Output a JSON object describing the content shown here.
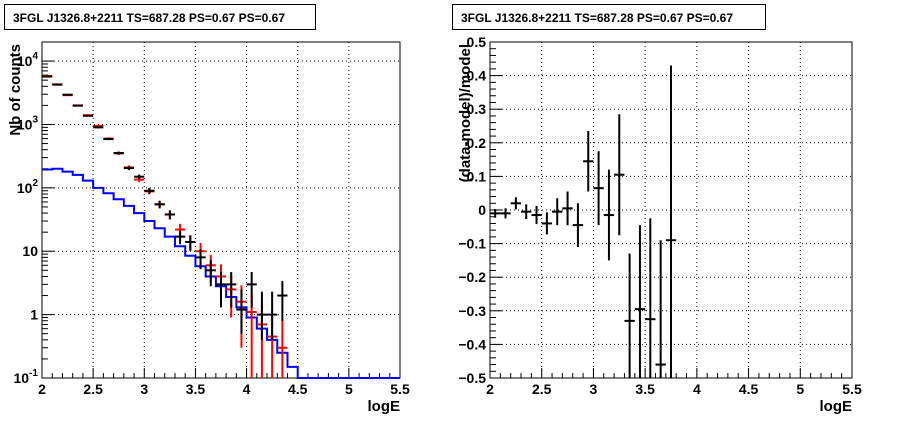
{
  "chart_data": [
    {
      "type": "step",
      "title": "3FGL J1326.8+2211 TS=687.28 PS=0.67 PS=0.67",
      "xlabel": "logE",
      "ylabel": "Nb of counts",
      "xlim": [
        2,
        5.5
      ],
      "ylim": [
        0.1,
        20000
      ],
      "yscale": "log",
      "grid": true,
      "x_ticks": [
        "2",
        "2.5",
        "3",
        "3.5",
        "4",
        "4.5",
        "5",
        "5.5"
      ],
      "y_ticks": [
        "10^-1",
        "1",
        "10",
        "10^2",
        "10^3",
        "10^4"
      ],
      "bin_edges": [
        2.0,
        2.1,
        2.2,
        2.3,
        2.4,
        2.5,
        2.6,
        2.7,
        2.8,
        2.9,
        3.0,
        3.1,
        3.2,
        3.3,
        3.4,
        3.5,
        3.6,
        3.7,
        3.8,
        3.9,
        4.0,
        4.1,
        4.2,
        4.3,
        4.4,
        4.5,
        4.6,
        4.7,
        4.8,
        4.9,
        5.0,
        5.1,
        5.2,
        5.3,
        5.4,
        5.5
      ],
      "series": [
        {
          "color": "#0000ff",
          "style": "step",
          "values": [
            195,
            200,
            180,
            160,
            130,
            100,
            82,
            66,
            52,
            40,
            30,
            23,
            17,
            12,
            8.5,
            5.8,
            4.0,
            2.8,
            1.9,
            1.3,
            0.9,
            0.6,
            0.4,
            0.25,
            0.15,
            0.1,
            0.1,
            0.1,
            0.1,
            0.1,
            0.1,
            0.1,
            0.1,
            0.1,
            0.1
          ]
        },
        {
          "color": "#ff0000",
          "style": "errorbar",
          "x": [
            2.05,
            2.15,
            2.25,
            2.35,
            2.45,
            2.55,
            2.65,
            2.75,
            2.85,
            2.95,
            3.05,
            3.15,
            3.25,
            3.35,
            3.45,
            3.55,
            3.65,
            3.75,
            3.85,
            3.95,
            4.05,
            4.15,
            4.25,
            4.35
          ],
          "y": [
            5800,
            4300,
            2900,
            2000,
            1400,
            950,
            600,
            350,
            210,
            135,
            88,
            55,
            38,
            22,
            14,
            10,
            6,
            4,
            2.5,
            1.6,
            1.1,
            0.7,
            0.45,
            0.3
          ],
          "err_low": [
            80,
            65,
            55,
            45,
            37,
            31,
            25,
            19,
            15,
            12,
            9,
            7.5,
            6,
            5,
            4,
            3.5,
            2.8,
            2.2,
            1.6,
            1.3,
            1.05,
            0.84,
            0.67,
            0.55
          ],
          "err_high": [
            80,
            65,
            55,
            45,
            37,
            31,
            25,
            19,
            15,
            12,
            9,
            7.5,
            6,
            5,
            4,
            3.5,
            2.8,
            2.2,
            1.6,
            1.3,
            1.05,
            0.84,
            0.67,
            0.55
          ]
        },
        {
          "color": "#000000",
          "style": "errorbar",
          "x": [
            2.05,
            2.15,
            2.25,
            2.35,
            2.45,
            2.55,
            2.65,
            2.75,
            2.85,
            2.95,
            3.05,
            3.15,
            3.25,
            3.35,
            3.45,
            3.55,
            3.65,
            3.75,
            3.85,
            3.95,
            4.05,
            4.15,
            4.25,
            4.35
          ],
          "y": [
            5700,
            4250,
            2950,
            1980,
            1370,
            900,
            590,
            355,
            205,
            150,
            90,
            55,
            38,
            17,
            14,
            8,
            5,
            3,
            3,
            1.2,
            3,
            1,
            1,
            2
          ],
          "err_low": [
            75,
            65,
            54,
            44,
            37,
            30,
            24,
            19,
            14,
            12,
            9.5,
            7.4,
            6.2,
            4.1,
            3.7,
            2.8,
            2.2,
            1.7,
            1.7,
            0.7,
            1.7,
            0.6,
            0.6,
            1.2
          ],
          "err_high": [
            75,
            65,
            54,
            44,
            37,
            30,
            24,
            19,
            14,
            12,
            9.5,
            7.4,
            6.2,
            4.1,
            3.7,
            2.8,
            2.2,
            1.7,
            1.7,
            1.3,
            1.7,
            1.3,
            1.3,
            1.4
          ]
        }
      ]
    },
    {
      "type": "scatter",
      "title": "3FGL J1326.8+2211 TS=687.28 PS=0.67 PS=0.67",
      "xlabel": "logE",
      "ylabel": "(data-model)/model",
      "xlim": [
        2,
        5.5
      ],
      "ylim": [
        -0.5,
        0.5
      ],
      "grid": true,
      "x_ticks": [
        "2",
        "2.5",
        "3",
        "3.5",
        "4",
        "4.5",
        "5",
        "5.5"
      ],
      "y_ticks": [
        "−0.5",
        "−0.4",
        "−0.3",
        "−0.2",
        "−0.1",
        "0",
        "0.1",
        "0.2",
        "0.3",
        "0.4",
        "0.5"
      ],
      "series": [
        {
          "color": "#000000",
          "style": "errorbar",
          "x": [
            2.05,
            2.15,
            2.25,
            2.35,
            2.45,
            2.55,
            2.65,
            2.75,
            2.85,
            2.95,
            3.05,
            3.15,
            3.25,
            3.35,
            3.45,
            3.55,
            3.65,
            3.75
          ],
          "y": [
            -0.01,
            -0.01,
            0.02,
            -0.005,
            -0.015,
            -0.04,
            -0.005,
            0.005,
            -0.045,
            0.145,
            0.065,
            -0.015,
            0.105,
            -0.33,
            -0.295,
            -0.325,
            -0.46,
            -0.09
          ],
          "err": [
            0.013,
            0.015,
            0.018,
            0.022,
            0.027,
            0.033,
            0.04,
            0.05,
            0.065,
            0.09,
            0.11,
            0.135,
            0.18,
            0.2,
            0.25,
            0.3,
            0.37,
            0.52
          ],
          "xerr": 0.05
        }
      ]
    }
  ]
}
